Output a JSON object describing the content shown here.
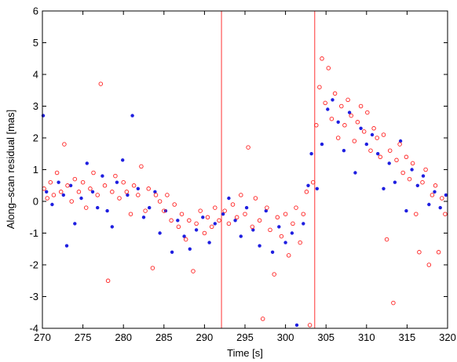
{
  "chart_data": {
    "type": "scatter",
    "title": "",
    "xlabel": "Time [s]",
    "ylabel": "Along–scan residual [mas]",
    "xlim": [
      270,
      320
    ],
    "ylim": [
      -4,
      6
    ],
    "xticks": [
      270,
      275,
      280,
      285,
      290,
      295,
      300,
      305,
      310,
      315,
      320
    ],
    "yticks": [
      -4,
      -3,
      -2,
      -1,
      0,
      1,
      2,
      3,
      4,
      5,
      6
    ],
    "grid": false,
    "vlines": [
      {
        "x": 292.1,
        "color": "#ff5555"
      },
      {
        "x": 303.6,
        "color": "#ff5555"
      }
    ],
    "series": [
      {
        "marker": "filled-dot",
        "color": "#1f1fe0",
        "points": [
          [
            270.1,
            2.7
          ],
          [
            270.5,
            0.3
          ],
          [
            271.2,
            -0.1
          ],
          [
            272.0,
            0.6
          ],
          [
            272.6,
            0.2
          ],
          [
            273.0,
            -1.4
          ],
          [
            273.5,
            0.5
          ],
          [
            274.0,
            -0.7
          ],
          [
            274.8,
            0.1
          ],
          [
            275.5,
            1.2
          ],
          [
            276.2,
            0.3
          ],
          [
            276.8,
            -0.2
          ],
          [
            277.4,
            0.8
          ],
          [
            278.0,
            -0.3
          ],
          [
            278.6,
            -0.8
          ],
          [
            279.2,
            0.6
          ],
          [
            279.9,
            1.3
          ],
          [
            280.5,
            0.2
          ],
          [
            281.1,
            2.7
          ],
          [
            281.8,
            0.4
          ],
          [
            282.5,
            -0.5
          ],
          [
            283.2,
            -0.2
          ],
          [
            283.9,
            0.3
          ],
          [
            284.5,
            -1.0
          ],
          [
            285.2,
            -0.3
          ],
          [
            286.0,
            -1.6
          ],
          [
            286.7,
            -0.6
          ],
          [
            287.5,
            -1.1
          ],
          [
            288.2,
            -1.5
          ],
          [
            289.0,
            -0.9
          ],
          [
            289.8,
            -0.5
          ],
          [
            290.6,
            -1.3
          ],
          [
            291.3,
            -0.7
          ],
          [
            292.3,
            -0.4
          ],
          [
            293.0,
            0.1
          ],
          [
            293.8,
            -0.6
          ],
          [
            294.5,
            -1.1
          ],
          [
            295.2,
            -0.2
          ],
          [
            296.0,
            -0.9
          ],
          [
            296.8,
            -1.4
          ],
          [
            297.6,
            -0.3
          ],
          [
            298.4,
            -1.6
          ],
          [
            299.2,
            -0.8
          ],
          [
            300.0,
            -1.3
          ],
          [
            300.8,
            -1.0
          ],
          [
            301.4,
            -3.9
          ],
          [
            302.2,
            -0.7
          ],
          [
            302.8,
            0.5
          ],
          [
            303.2,
            1.5
          ],
          [
            303.9,
            0.4
          ],
          [
            304.5,
            1.8
          ],
          [
            305.2,
            2.9
          ],
          [
            305.8,
            3.2
          ],
          [
            306.5,
            2.5
          ],
          [
            307.2,
            1.6
          ],
          [
            307.9,
            2.8
          ],
          [
            308.6,
            0.9
          ],
          [
            309.3,
            2.3
          ],
          [
            310.0,
            1.8
          ],
          [
            310.7,
            2.1
          ],
          [
            311.4,
            1.5
          ],
          [
            312.1,
            0.4
          ],
          [
            312.8,
            1.2
          ],
          [
            313.5,
            0.6
          ],
          [
            314.2,
            1.9
          ],
          [
            314.9,
            -0.3
          ],
          [
            315.6,
            1.0
          ],
          [
            316.3,
            0.5
          ],
          [
            317.0,
            0.8
          ],
          [
            317.7,
            -0.1
          ],
          [
            318.4,
            0.3
          ],
          [
            319.1,
            -0.2
          ],
          [
            319.8,
            0.2
          ]
        ]
      },
      {
        "marker": "open-circle",
        "color": "#ff2020",
        "points": [
          [
            270.2,
            0.4
          ],
          [
            270.6,
            0.1
          ],
          [
            271.0,
            0.6
          ],
          [
            271.4,
            0.2
          ],
          [
            271.8,
            0.9
          ],
          [
            272.3,
            0.3
          ],
          [
            272.7,
            1.8
          ],
          [
            273.1,
            0.5
          ],
          [
            273.6,
            0.0
          ],
          [
            274.0,
            0.7
          ],
          [
            274.5,
            0.3
          ],
          [
            275.0,
            0.6
          ],
          [
            275.4,
            -0.2
          ],
          [
            275.9,
            0.4
          ],
          [
            276.3,
            0.9
          ],
          [
            276.8,
            0.2
          ],
          [
            277.2,
            3.7
          ],
          [
            277.7,
            0.5
          ],
          [
            278.1,
            -2.5
          ],
          [
            278.6,
            0.3
          ],
          [
            279.0,
            0.8
          ],
          [
            279.5,
            0.1
          ],
          [
            280.0,
            0.6
          ],
          [
            280.4,
            0.3
          ],
          [
            280.9,
            -0.4
          ],
          [
            281.3,
            0.5
          ],
          [
            281.8,
            0.2
          ],
          [
            282.2,
            1.1
          ],
          [
            282.7,
            -0.3
          ],
          [
            283.1,
            0.4
          ],
          [
            283.6,
            -2.1
          ],
          [
            284.0,
            0.2
          ],
          [
            284.5,
            0.0
          ],
          [
            285.0,
            -0.3
          ],
          [
            285.4,
            0.2
          ],
          [
            285.9,
            -0.6
          ],
          [
            286.3,
            -0.1
          ],
          [
            286.8,
            -0.8
          ],
          [
            287.2,
            -0.4
          ],
          [
            287.7,
            -1.2
          ],
          [
            288.1,
            -0.6
          ],
          [
            288.6,
            -2.2
          ],
          [
            289.0,
            -0.7
          ],
          [
            289.5,
            -0.3
          ],
          [
            290.0,
            -1.0
          ],
          [
            290.4,
            -0.5
          ],
          [
            290.9,
            -0.8
          ],
          [
            291.3,
            -0.2
          ],
          [
            291.8,
            -0.6
          ],
          [
            292.5,
            -0.3
          ],
          [
            293.0,
            -0.7
          ],
          [
            293.5,
            -0.1
          ],
          [
            294.0,
            -0.5
          ],
          [
            294.5,
            0.2
          ],
          [
            295.0,
            -0.4
          ],
          [
            295.4,
            1.7
          ],
          [
            295.9,
            -0.8
          ],
          [
            296.3,
            0.1
          ],
          [
            296.8,
            -0.6
          ],
          [
            297.2,
            -3.7
          ],
          [
            297.7,
            -0.2
          ],
          [
            298.1,
            -0.9
          ],
          [
            298.6,
            -2.3
          ],
          [
            299.0,
            -0.5
          ],
          [
            299.5,
            -1.1
          ],
          [
            300.0,
            -0.4
          ],
          [
            300.4,
            -1.7
          ],
          [
            300.9,
            -0.7
          ],
          [
            301.3,
            -0.2
          ],
          [
            301.8,
            -1.3
          ],
          [
            302.2,
            -0.4
          ],
          [
            302.6,
            0.3
          ],
          [
            303.0,
            -3.9
          ],
          [
            303.4,
            0.6
          ],
          [
            303.8,
            2.4
          ],
          [
            304.2,
            3.6
          ],
          [
            304.5,
            4.5
          ],
          [
            304.9,
            3.1
          ],
          [
            305.3,
            4.2
          ],
          [
            305.7,
            2.6
          ],
          [
            306.1,
            3.4
          ],
          [
            306.5,
            2.0
          ],
          [
            306.9,
            3.0
          ],
          [
            307.3,
            2.4
          ],
          [
            307.7,
            3.2
          ],
          [
            308.1,
            2.7
          ],
          [
            308.5,
            1.9
          ],
          [
            308.9,
            2.5
          ],
          [
            309.3,
            3.0
          ],
          [
            309.7,
            2.2
          ],
          [
            310.1,
            2.8
          ],
          [
            310.5,
            1.6
          ],
          [
            310.9,
            2.3
          ],
          [
            311.3,
            2.0
          ],
          [
            311.7,
            1.4
          ],
          [
            312.1,
            2.1
          ],
          [
            312.5,
            -1.2
          ],
          [
            312.9,
            1.6
          ],
          [
            313.3,
            -3.2
          ],
          [
            313.7,
            1.3
          ],
          [
            314.1,
            1.8
          ],
          [
            314.5,
            0.9
          ],
          [
            314.9,
            1.4
          ],
          [
            315.3,
            0.7
          ],
          [
            315.7,
            1.2
          ],
          [
            316.1,
            -0.4
          ],
          [
            316.5,
            -1.6
          ],
          [
            316.9,
            0.6
          ],
          [
            317.3,
            1.0
          ],
          [
            317.7,
            -2.0
          ],
          [
            318.1,
            0.2
          ],
          [
            318.5,
            0.5
          ],
          [
            318.9,
            -1.6
          ],
          [
            319.3,
            0.1
          ],
          [
            319.7,
            -0.4
          ]
        ]
      }
    ]
  }
}
